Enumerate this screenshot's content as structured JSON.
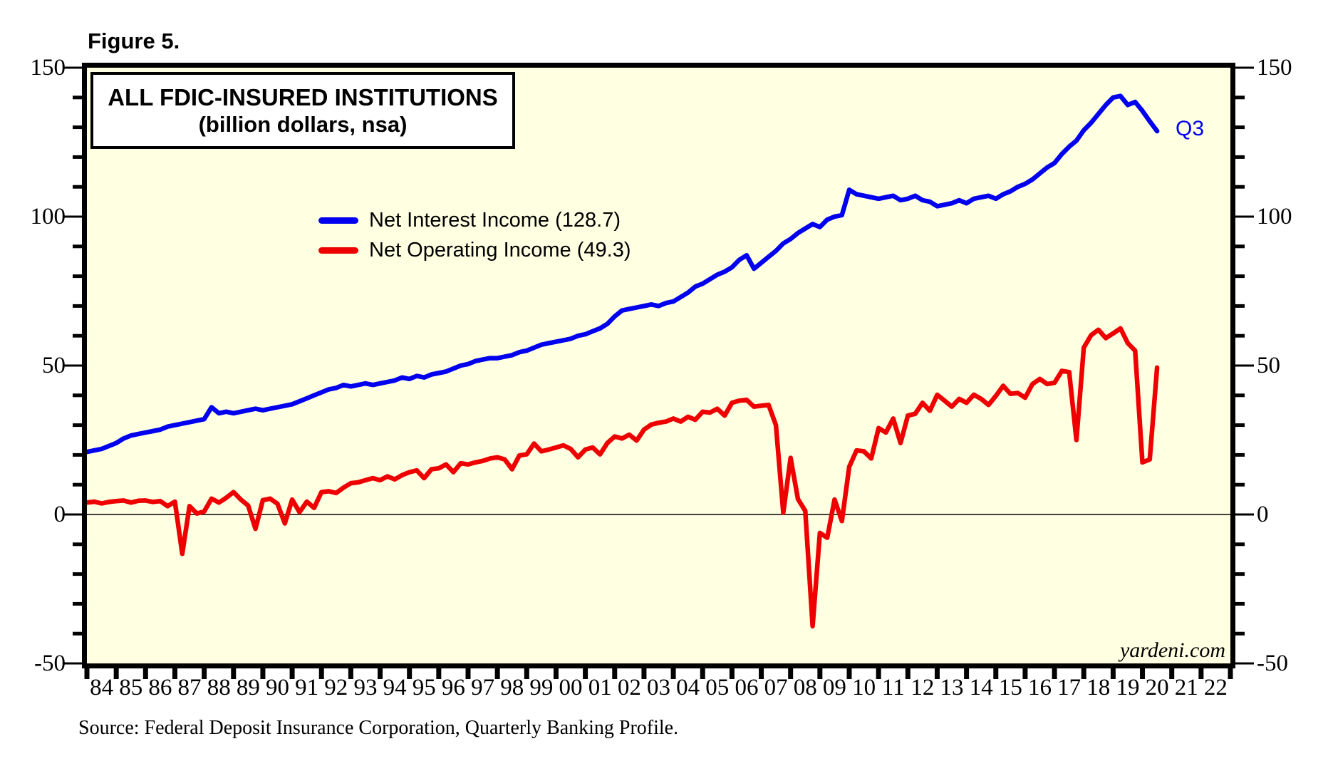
{
  "figure_label": "Figure 5.",
  "chart_box": {
    "title_line1": "ALL FDIC-INSURED INSTITUTIONS",
    "title_line2": "(billion dollars, nsa)"
  },
  "legend": [
    {
      "label": "Net Interest Income (128.7)",
      "color": "#0000EE"
    },
    {
      "label": "Net Operating Income (49.3)",
      "color": "#EE0000"
    }
  ],
  "annotations": {
    "q3": "Q3",
    "watermark": "yardeni.com"
  },
  "source": "Source: Federal Deposit Insurance Corporation, Quarterly Banking Profile.",
  "colors": {
    "plot_bg": "#FFFFE2",
    "blue": "#0000EE",
    "red": "#EE0000",
    "axis": "#000000",
    "page_bg": "#FFFFFF"
  },
  "chart_data": {
    "type": "line",
    "title": "ALL FDIC-INSURED INSTITUTIONS (billion dollars, nsa)",
    "x_unit": "quarterly, 1984Q1 - 2020Q3",
    "ylim": [
      -50,
      150
    ],
    "y_major_ticks": [
      150,
      100,
      50,
      0,
      -50
    ],
    "y_tick_labels": [
      "150",
      "100",
      "50",
      "0",
      "-50"
    ],
    "y_minor_step": 10,
    "x_start_year": 1984,
    "x_end_year": 2023,
    "x_tick_labels": [
      "84",
      "85",
      "86",
      "87",
      "88",
      "89",
      "90",
      "91",
      "92",
      "93",
      "94",
      "95",
      "96",
      "97",
      "98",
      "99",
      "00",
      "01",
      "02",
      "03",
      "04",
      "05",
      "06",
      "07",
      "08",
      "09",
      "10",
      "11",
      "12",
      "13",
      "14",
      "15",
      "16",
      "17",
      "18",
      "19",
      "20",
      "21",
      "22"
    ],
    "zero_line": true,
    "grid": false,
    "legend_position": "upper-left-inside",
    "series": [
      {
        "name": "Net Interest Income (128.7)",
        "color": "#0000EE",
        "start": 1984,
        "period_years": 0.25,
        "values": [
          21.0,
          21.5,
          22.0,
          23.0,
          24.0,
          25.5,
          26.5,
          27.0,
          27.5,
          28.0,
          28.5,
          29.5,
          30.0,
          30.5,
          31.0,
          31.5,
          32.0,
          36.0,
          34.0,
          34.5,
          34.0,
          34.5,
          35.0,
          35.5,
          35.0,
          35.5,
          36.0,
          36.5,
          37.0,
          38.0,
          39.0,
          40.0,
          41.0,
          42.0,
          42.5,
          43.5,
          43.0,
          43.5,
          44.0,
          43.5,
          44.0,
          44.5,
          45.0,
          46.0,
          45.5,
          46.5,
          46.0,
          47.0,
          47.5,
          48.0,
          49.0,
          50.0,
          50.5,
          51.5,
          52.0,
          52.5,
          52.5,
          53.0,
          53.5,
          54.5,
          55.0,
          56.0,
          57.0,
          57.5,
          58.0,
          58.5,
          59.0,
          60.0,
          60.5,
          61.5,
          62.5,
          64.0,
          66.5,
          68.5,
          69.0,
          69.5,
          70.0,
          70.5,
          70.0,
          71.0,
          71.5,
          73.0,
          74.5,
          76.5,
          77.5,
          79.0,
          80.5,
          81.5,
          83.0,
          85.5,
          87.0,
          82.5,
          84.5,
          86.5,
          88.5,
          91.0,
          92.5,
          94.5,
          96.0,
          97.5,
          96.5,
          99.0,
          100.0,
          100.5,
          109.0,
          107.5,
          107.0,
          106.5,
          106.0,
          106.5,
          107.0,
          105.5,
          106.0,
          107.0,
          105.5,
          105.0,
          103.5,
          104.0,
          104.5,
          105.5,
          104.5,
          106.0,
          106.5,
          107.0,
          106.0,
          107.5,
          108.5,
          110.0,
          111.0,
          112.5,
          114.5,
          116.5,
          118.0,
          121.0,
          123.5,
          125.5,
          129.0,
          131.5,
          134.5,
          137.5,
          140.0,
          140.5,
          137.5,
          138.5,
          135.5,
          132.0,
          128.7
        ]
      },
      {
        "name": "Net Operating Income (49.3)",
        "color": "#EE0000",
        "start": 1984,
        "period_years": 0.25,
        "values": [
          4.0,
          4.3,
          3.7,
          4.2,
          4.5,
          4.7,
          4.0,
          4.6,
          4.7,
          4.2,
          4.5,
          2.8,
          4.3,
          -13.2,
          2.8,
          0.3,
          1.0,
          5.3,
          4.0,
          5.6,
          7.5,
          5.0,
          3.0,
          -4.8,
          4.8,
          5.3,
          3.6,
          -3.0,
          5.0,
          0.8,
          4.3,
          2.2,
          7.5,
          7.8,
          7.2,
          9.0,
          10.5,
          10.8,
          11.5,
          12.2,
          11.5,
          12.8,
          11.8,
          13.2,
          14.2,
          14.8,
          12.2,
          15.2,
          15.5,
          16.8,
          14.2,
          17.2,
          16.8,
          17.5,
          18.0,
          18.8,
          19.2,
          18.5,
          15.2,
          19.8,
          20.2,
          23.8,
          21.2,
          21.8,
          22.5,
          23.2,
          22.0,
          19.2,
          21.8,
          22.5,
          20.2,
          24.0,
          26.2,
          25.5,
          26.8,
          24.8,
          28.5,
          30.2,
          30.8,
          31.2,
          32.2,
          31.2,
          32.8,
          31.8,
          34.5,
          34.2,
          35.5,
          33.2,
          37.5,
          38.2,
          38.5,
          36.2,
          36.5,
          36.8,
          30.0,
          0.6,
          19.0,
          5.2,
          1.2,
          -37.5,
          -6.2,
          -7.8,
          5.0,
          -2.2,
          16.0,
          21.5,
          21.2,
          18.8,
          29.0,
          27.5,
          32.2,
          24.0,
          33.2,
          33.8,
          37.5,
          34.8,
          40.2,
          38.2,
          36.2,
          38.8,
          37.5,
          40.2,
          38.8,
          36.8,
          39.8,
          43.2,
          40.5,
          40.8,
          39.2,
          43.8,
          45.5,
          43.8,
          44.2,
          48.2,
          47.8,
          25.0,
          56.0,
          60.2,
          62.0,
          59.2,
          60.8,
          62.5,
          57.5,
          55.0,
          17.5,
          18.5,
          49.3
        ]
      }
    ]
  }
}
